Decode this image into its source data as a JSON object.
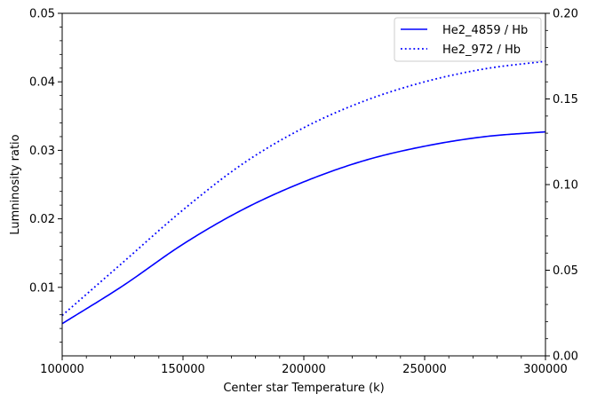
{
  "chart_data": {
    "type": "line",
    "title": "",
    "xlabel": "Center star Temperature (k)",
    "ylabel": "Lumninosity ratio",
    "xlim": [
      100000,
      300000
    ],
    "ylim_left": [
      0,
      0.05
    ],
    "ylim_right": [
      0,
      0.2
    ],
    "x_ticks": [
      "100000",
      "150000",
      "200000",
      "250000",
      "300000"
    ],
    "y_left_ticks": [
      "0.01",
      "0.02",
      "0.03",
      "0.04",
      "0.05"
    ],
    "y_right_ticks": [
      "0.00",
      "0.05",
      "0.10",
      "0.15",
      "0.20"
    ],
    "grid": false,
    "legend_position": "upper-right",
    "colors": {
      "series": "#0000ff",
      "axis": "#000000"
    },
    "x": [
      100000,
      125000,
      150000,
      175000,
      200000,
      225000,
      250000,
      275000,
      300000
    ],
    "series": [
      {
        "name": "He2_4859 / Hb",
        "style": "solid",
        "axis": "left",
        "values": [
          0.0047,
          0.0102,
          0.0163,
          0.0214,
          0.0254,
          0.0285,
          0.0306,
          0.032,
          0.0327
        ]
      },
      {
        "name": "He2_972 / Hb",
        "style": "dotted",
        "axis": "left",
        "values": [
          0.0059,
          0.0136,
          0.0213,
          0.0281,
          0.0333,
          0.0372,
          0.04,
          0.0419,
          0.043
        ]
      }
    ]
  }
}
